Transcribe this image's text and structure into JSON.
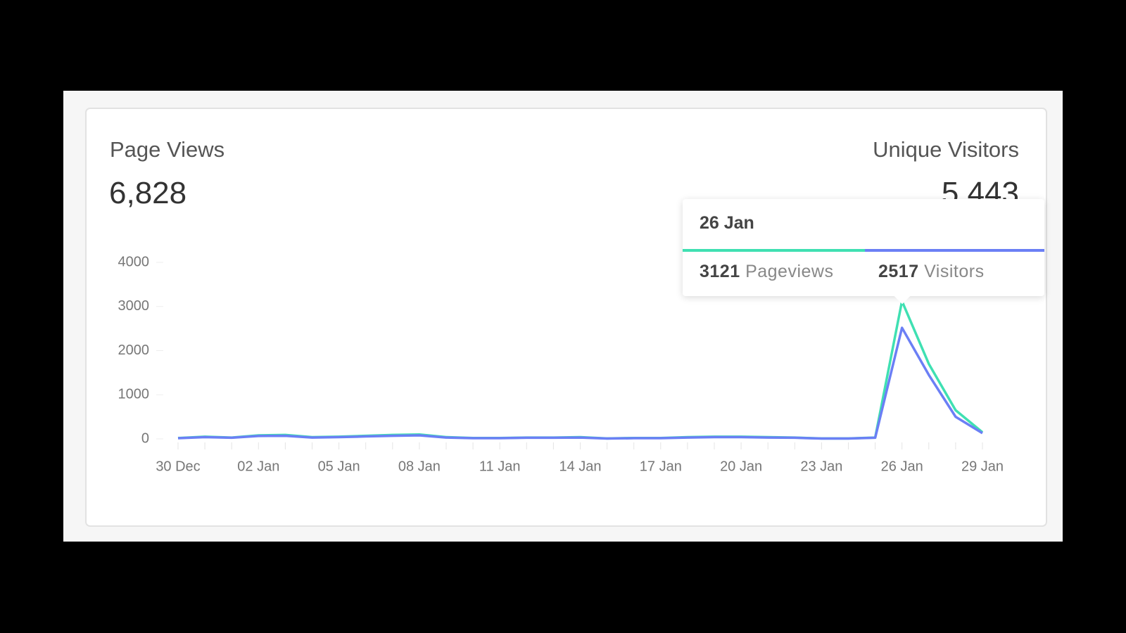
{
  "header": {
    "page_views": {
      "title": "Page Views",
      "total": {
        "value": 6828,
        "label": "6,828"
      }
    },
    "unique_visitors": {
      "title": "Unique Visitors",
      "total": {
        "value": 5443,
        "label": "5,443"
      }
    }
  },
  "chart_data": {
    "type": "line",
    "categories": [
      "30 Dec",
      null,
      null,
      "02 Jan",
      null,
      null,
      "05 Jan",
      null,
      null,
      "08 Jan",
      null,
      null,
      "11 Jan",
      null,
      null,
      "14 Jan",
      null,
      null,
      "17 Jan",
      null,
      null,
      "20 Jan",
      null,
      null,
      "23 Jan",
      null,
      null,
      "26 Jan",
      null,
      null,
      "29 Jan"
    ],
    "series": [
      {
        "name": "Pageviews",
        "color": "#3fe0b2",
        "values": [
          20,
          50,
          30,
          80,
          90,
          40,
          50,
          70,
          90,
          100,
          40,
          20,
          20,
          30,
          30,
          40,
          10,
          20,
          20,
          40,
          50,
          50,
          40,
          30,
          10,
          10,
          30,
          3121,
          1700,
          650,
          150
        ]
      },
      {
        "name": "Visitors",
        "color": "#6b7ff5",
        "values": [
          15,
          40,
          25,
          65,
          70,
          30,
          40,
          55,
          70,
          80,
          30,
          15,
          15,
          25,
          25,
          30,
          8,
          15,
          15,
          30,
          40,
          40,
          30,
          25,
          8,
          8,
          25,
          2517,
          1450,
          500,
          130
        ]
      }
    ],
    "ylim": [
      0,
      4000
    ],
    "yticks": [
      0,
      1000,
      2000,
      3000,
      4000
    ],
    "tooltip_index": 27
  }
}
